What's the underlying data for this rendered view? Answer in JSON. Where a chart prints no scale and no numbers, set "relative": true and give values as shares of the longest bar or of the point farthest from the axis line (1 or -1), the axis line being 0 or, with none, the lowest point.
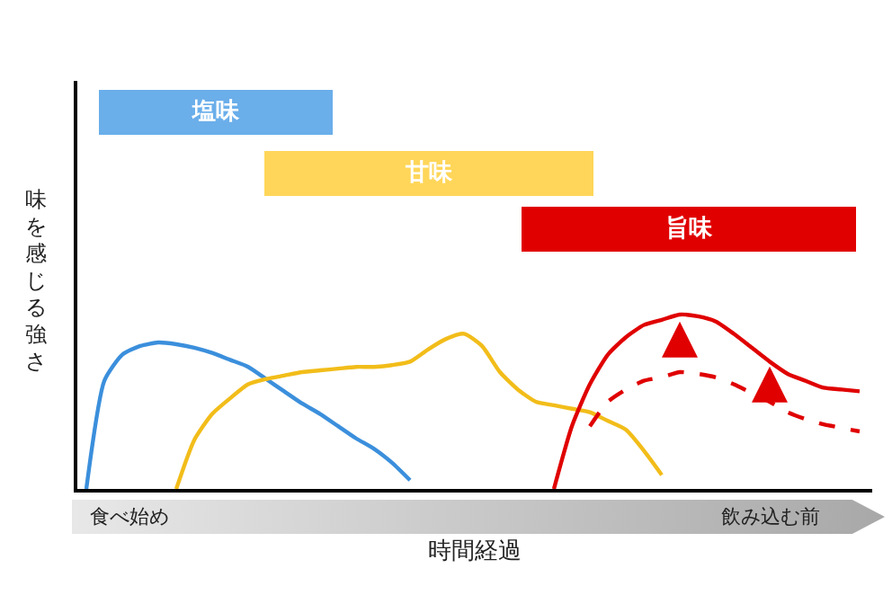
{
  "chart_data": [
    {
      "type": "other",
      "categories": [
        "塩味",
        "甘味",
        "旨味"
      ],
      "colors": [
        "#6aaeea",
        "#ffd659",
        "#e00000"
      ]
    },
    {
      "type": "line",
      "relative": true,
      "xlabel": "時間経過",
      "ylabel": "味を感じる強さ",
      "annotations": [
        "食べ始め",
        "飲み込む前"
      ],
      "grid": false,
      "legend": false,
      "marker": "none",
      "categories": [
        null,
        null,
        null,
        null,
        null,
        null,
        null,
        null,
        null,
        null,
        null,
        null,
        null,
        null,
        null,
        null,
        null,
        null,
        null,
        null,
        null,
        null,
        null,
        null,
        null,
        null,
        null,
        null,
        null,
        null,
        null,
        null,
        null,
        null,
        null,
        null,
        null,
        null,
        null,
        null,
        null,
        null,
        null,
        null,
        null
      ],
      "series": [
        {
          "color": "#3b8fdc",
          "values": [
            0,
            0.62,
            0.77,
            0.82,
            0.84,
            0.83,
            0.81,
            0.78,
            0.74,
            0.7,
            0.63,
            0.56,
            0.49,
            0.43,
            0.36,
            0.29,
            0.23,
            0.15,
            0.05,
            null,
            null,
            null,
            null,
            null,
            null,
            null,
            null,
            null,
            null,
            null,
            null,
            null,
            null,
            null,
            null,
            null,
            null,
            null,
            null,
            null,
            null,
            null,
            null,
            null,
            null
          ]
        },
        {
          "color": "#f2bd1a",
          "values": [
            null,
            null,
            null,
            null,
            null,
            0,
            0.28,
            0.43,
            0.52,
            0.6,
            0.63,
            0.65,
            0.67,
            0.68,
            0.69,
            0.7,
            0.7,
            0.71,
            0.73,
            0.8,
            0.86,
            0.89,
            0.82,
            0.67,
            0.57,
            0.5,
            0.48,
            0.46,
            0.44,
            0.39,
            0.34,
            0.22,
            0.08,
            null,
            null,
            null,
            null,
            null,
            null,
            null,
            null,
            null,
            null,
            null,
            null
          ]
        },
        {
          "color": "#e00000",
          "line_style": "solid",
          "values": [
            null,
            null,
            null,
            null,
            null,
            null,
            null,
            null,
            null,
            null,
            null,
            null,
            null,
            null,
            null,
            null,
            null,
            null,
            null,
            null,
            null,
            null,
            null,
            null,
            null,
            null,
            0,
            0.36,
            0.6,
            0.77,
            0.87,
            0.94,
            0.97,
            1,
            0.99,
            0.96,
            0.89,
            0.81,
            0.73,
            0.66,
            0.62,
            0.58,
            0.57,
            0.56,
            null
          ]
        },
        {
          "color": "#e00000",
          "line_style": "dashed",
          "values": [
            null,
            null,
            null,
            null,
            null,
            null,
            null,
            null,
            null,
            null,
            null,
            null,
            null,
            null,
            null,
            null,
            null,
            null,
            null,
            null,
            null,
            null,
            null,
            null,
            null,
            null,
            null,
            null,
            0.36,
            0.5,
            0.57,
            0.62,
            0.64,
            0.67,
            0.66,
            0.64,
            0.6,
            0.55,
            0.5,
            0.44,
            0.4,
            0.37,
            0.35,
            0.33,
            null
          ]
        }
      ]
    }
  ]
}
